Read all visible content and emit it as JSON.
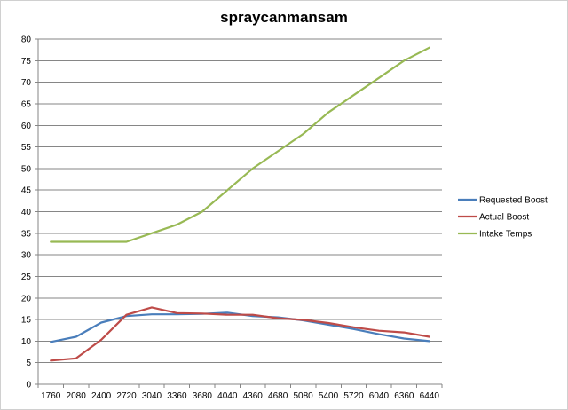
{
  "chart_data": {
    "type": "line",
    "title": "spraycanmansam",
    "xlabel": "",
    "ylabel": "",
    "categories": [
      "1760",
      "2080",
      "2400",
      "2720",
      "3040",
      "3360",
      "3680",
      "4040",
      "4360",
      "4680",
      "5080",
      "5400",
      "5720",
      "6040",
      "6360",
      "6440"
    ],
    "ylim": [
      0,
      80
    ],
    "yticks": [
      0,
      5,
      10,
      15,
      20,
      25,
      30,
      35,
      40,
      45,
      50,
      55,
      60,
      65,
      70,
      75,
      80
    ],
    "grid": true,
    "legend_position": "right",
    "series": [
      {
        "name": "Requested Boost",
        "color": "#4a7ebb",
        "values": [
          9.8,
          11,
          14.3,
          15.8,
          16.2,
          16.2,
          16.3,
          16.6,
          15.8,
          15.5,
          14.8,
          13.8,
          12.8,
          11.6,
          10.6,
          10
        ]
      },
      {
        "name": "Actual Boost",
        "color": "#be4b48",
        "values": [
          5.5,
          6,
          10.3,
          16.1,
          17.8,
          16.5,
          16.4,
          16.1,
          16.1,
          15.3,
          14.9,
          14.2,
          13.2,
          12.4,
          12,
          11
        ]
      },
      {
        "name": "Intake Temps",
        "color": "#98b954",
        "values": [
          33,
          33,
          33,
          33,
          35,
          37,
          40,
          45,
          50,
          54,
          58,
          63,
          67,
          71,
          75,
          78
        ]
      }
    ]
  }
}
